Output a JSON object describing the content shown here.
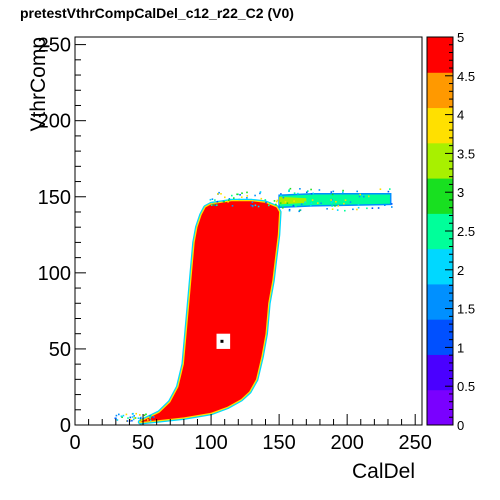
{
  "chart_data": {
    "type": "heatmap",
    "title": "pretestVthrCompCalDel_c12_r22_C2 (V0)",
    "xlabel": "CalDel",
    "ylabel": "VthrComp",
    "xlim": [
      0,
      255
    ],
    "ylim": [
      0,
      255
    ],
    "x_ticks": [
      0,
      50,
      100,
      150,
      200,
      250
    ],
    "y_ticks": [
      0,
      50,
      100,
      150,
      200,
      250
    ],
    "zlim": [
      0,
      5
    ],
    "z_ticks": [
      "0",
      "0.5",
      "1",
      "1.5",
      "2",
      "2.5",
      "3",
      "3.5",
      "4",
      "4.5",
      "5"
    ],
    "grid": false,
    "saturated_value": 5,
    "saturated_color": "#ff0000",
    "main_region": {
      "value": 5,
      "left_edge": [
        [
          48,
          2
        ],
        [
          62,
          8
        ],
        [
          70,
          15
        ],
        [
          76,
          25
        ],
        [
          80,
          40
        ],
        [
          82,
          60
        ],
        [
          84,
          80
        ],
        [
          86,
          100
        ],
        [
          88,
          120
        ],
        [
          90,
          130
        ],
        [
          93,
          138
        ],
        [
          96,
          143
        ],
        [
          100,
          145
        ]
      ],
      "right_edge": [
        [
          100,
          145
        ],
        [
          115,
          147
        ],
        [
          130,
          147
        ],
        [
          140,
          146
        ],
        [
          148,
          143
        ],
        [
          150,
          140
        ],
        [
          149,
          125
        ],
        [
          147,
          110
        ],
        [
          145,
          95
        ],
        [
          142,
          80
        ],
        [
          140,
          60
        ],
        [
          137,
          45
        ],
        [
          133,
          30
        ],
        [
          128,
          22
        ],
        [
          122,
          17
        ],
        [
          112,
          12
        ],
        [
          100,
          8
        ],
        [
          80,
          5
        ],
        [
          60,
          3
        ],
        [
          48,
          2
        ]
      ]
    },
    "plateau_band": {
      "x_range": [
        150,
        232
      ],
      "y_range": [
        143,
        152
      ],
      "value": 3
    },
    "hole": {
      "x_range": [
        104,
        114
      ],
      "y_range": [
        50,
        60
      ],
      "value": 0,
      "center_point": [
        108,
        55
      ]
    }
  },
  "colors": {
    "palette": [
      "#7a00ff",
      "#4a00ff",
      "#0050ff",
      "#0090ff",
      "#00d8ff",
      "#00ff9a",
      "#18e020",
      "#a8f000",
      "#ffe000",
      "#ff9900",
      "#ff0000"
    ],
    "frame": "#000000",
    "background": "#ffffff"
  }
}
